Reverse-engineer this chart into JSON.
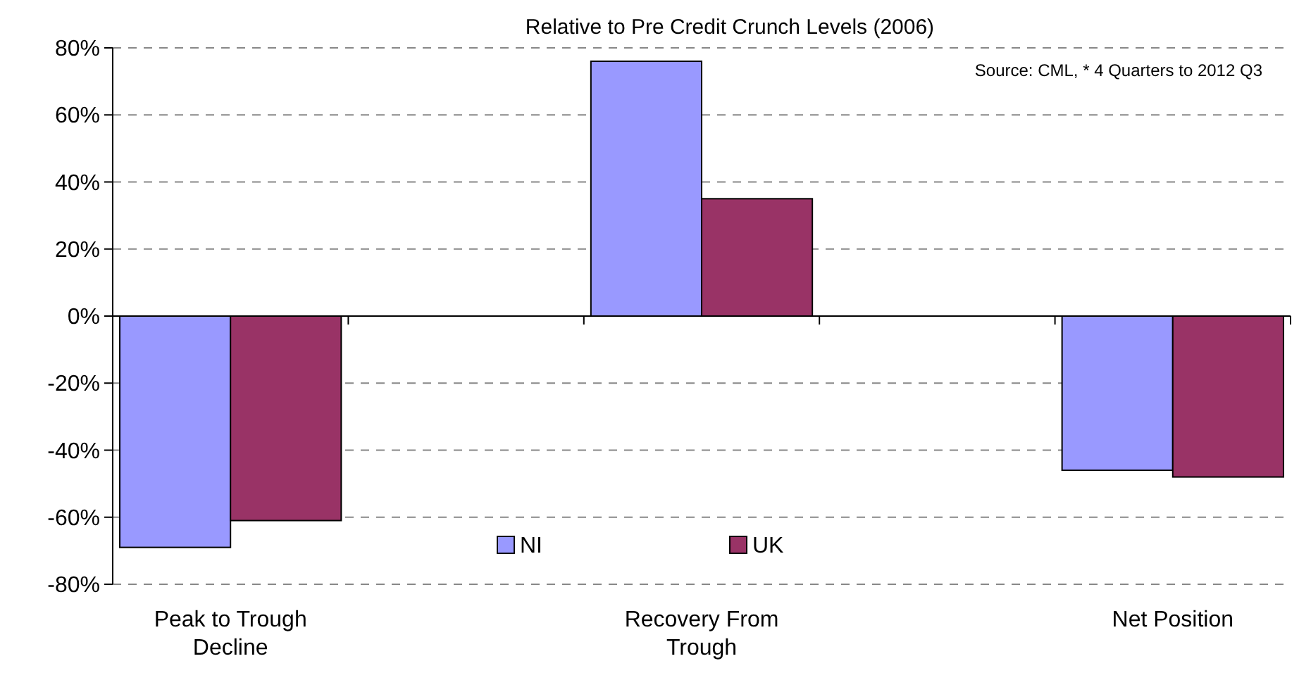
{
  "chart_data": {
    "type": "bar",
    "title": "Relative to Pre Credit Crunch Levels (2006)",
    "categories": [
      "Peak to Trough Decline",
      null,
      "Recovery From Trough",
      null,
      "Net Position"
    ],
    "series": [
      {
        "name": "NI",
        "color": "#9999ff",
        "values": [
          -69,
          null,
          76,
          null,
          -46
        ]
      },
      {
        "name": "UK",
        "color": "#993366",
        "values": [
          -61,
          null,
          35,
          null,
          -48
        ]
      }
    ],
    "ylim": [
      -80,
      80
    ],
    "yticks": [
      {
        "value": -80,
        "label": "-80%"
      },
      {
        "value": -60,
        "label": "-60%"
      },
      {
        "value": -40,
        "label": "-40%"
      },
      {
        "value": -20,
        "label": "-20%"
      },
      {
        "value": 0,
        "label": "0%"
      },
      {
        "value": 20,
        "label": "20%"
      },
      {
        "value": 40,
        "label": "40%"
      },
      {
        "value": 60,
        "label": "60%"
      },
      {
        "value": 80,
        "label": "80%"
      }
    ],
    "grid": "y",
    "legend": "bottom",
    "annotations": [
      "Source: CML, * 4 Quarters to 2012 Q3"
    ]
  }
}
